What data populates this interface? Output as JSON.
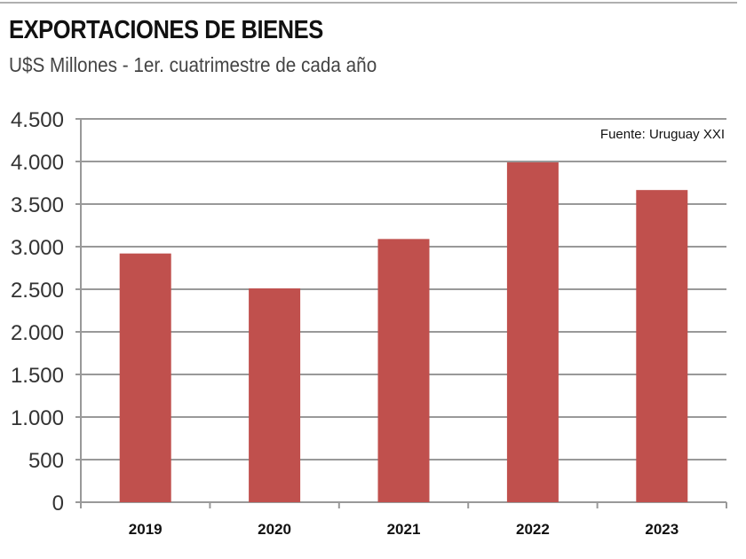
{
  "title": "EXPORTACIONES DE BIENES",
  "subtitle": "U$S Millones  - 1er. cuatrimestre  de cada año",
  "source": "Fuente: Uruguay XXI",
  "chart_data": {
    "type": "bar",
    "title": "EXPORTACIONES DE BIENES",
    "subtitle": "U$S Millones  - 1er. cuatrimestre  de cada año",
    "categories": [
      "2019",
      "2020",
      "2021",
      "2022",
      "2023"
    ],
    "values": [
      2920,
      2510,
      3090,
      3990,
      3665
    ],
    "ylim": [
      0,
      4500
    ],
    "yticks": [
      0,
      500,
      1000,
      1500,
      2000,
      2500,
      3000,
      3500,
      4000,
      4500
    ],
    "ytick_labels": [
      "0",
      "500",
      "1.000",
      "1.500",
      "2.000",
      "2.500",
      "3.000",
      "3.500",
      "4.000",
      "4.500"
    ],
    "grid": true,
    "bar_color": "#c0504d",
    "annotation": "Fuente: Uruguay XXI"
  }
}
